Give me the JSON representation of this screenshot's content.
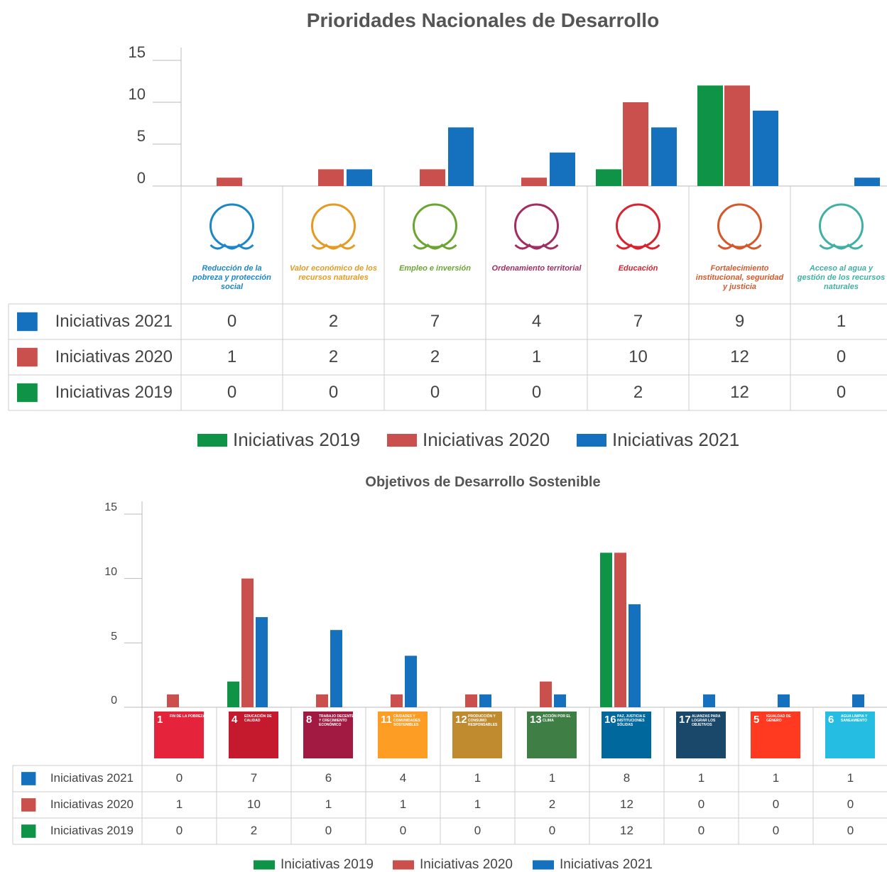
{
  "chart_data": [
    {
      "type": "bar",
      "title": "Prioridades Nacionales de Desarrollo",
      "categories": [
        "Reducción de la pobreza y protección social",
        "Valor económico de los recursos naturales",
        "Empleo e inversión",
        "Ordenamiento territorial",
        "Educación",
        "Fortalecimiento institucional, seguridad y justicia",
        "Acceso al agua y gestión de los recursos naturales"
      ],
      "category_colors": [
        "#1b87c7",
        "#e39b22",
        "#6aa531",
        "#a22d62",
        "#d8222f",
        "#d4582a",
        "#3fb0a3"
      ],
      "series": [
        {
          "name": "Iniciativas 2019",
          "color": "#0f9347",
          "values": [
            0,
            0,
            0,
            0,
            2,
            12,
            0
          ]
        },
        {
          "name": "Iniciativas 2020",
          "color": "#c9504d",
          "values": [
            1,
            2,
            2,
            1,
            10,
            12,
            0
          ]
        },
        {
          "name": "Iniciativas 2021",
          "color": "#1571bd",
          "values": [
            0,
            2,
            7,
            4,
            7,
            9,
            1
          ]
        }
      ],
      "ylim": [
        0,
        15
      ],
      "yticks": [
        0,
        5,
        10,
        15
      ],
      "legend": "bottom"
    },
    {
      "type": "bar",
      "title": "Objetivos de Desarrollo Sostenible",
      "goal_numbers": [
        1,
        4,
        8,
        11,
        12,
        13,
        16,
        17,
        5,
        6
      ],
      "categories": [
        "FIN DE LA POBREZA",
        "EDUCACIÓN DE CALIDAD",
        "TRABAJO DECENTE Y CRECIMIENTO ECONÓMICO",
        "CIUDADES Y COMUNIDADES SOSTENIBLES",
        "PRODUCCIÓN Y CONSUMO RESPONSABLES",
        "ACCIÓN POR EL CLIMA",
        "PAZ, JUSTICIA E INSTITUCIONES SÓLIDAS",
        "ALIANZAS PARA LOGRAR LOS OBJETIVOS",
        "IGUALDAD DE GÉNERO",
        "AGUA LIMPIA Y SANEAMIENTO"
      ],
      "category_colors": [
        "#e5243b",
        "#c5192d",
        "#a21942",
        "#fd9d24",
        "#bf8b2e",
        "#3f7e44",
        "#00689d",
        "#19486a",
        "#ff3a21",
        "#26bde2"
      ],
      "series": [
        {
          "name": "Iniciativas 2019",
          "color": "#0f9347",
          "values": [
            0,
            2,
            0,
            0,
            0,
            0,
            12,
            0,
            0,
            0
          ]
        },
        {
          "name": "Iniciativas 2020",
          "color": "#c9504d",
          "values": [
            1,
            10,
            1,
            1,
            1,
            2,
            12,
            0,
            0,
            0
          ]
        },
        {
          "name": "Iniciativas 2021",
          "color": "#1571bd",
          "values": [
            0,
            7,
            6,
            4,
            1,
            1,
            8,
            1,
            1,
            1
          ]
        }
      ],
      "ylim": [
        0,
        15
      ],
      "yticks": [
        0,
        5,
        10,
        15
      ],
      "legend": "bottom"
    }
  ]
}
